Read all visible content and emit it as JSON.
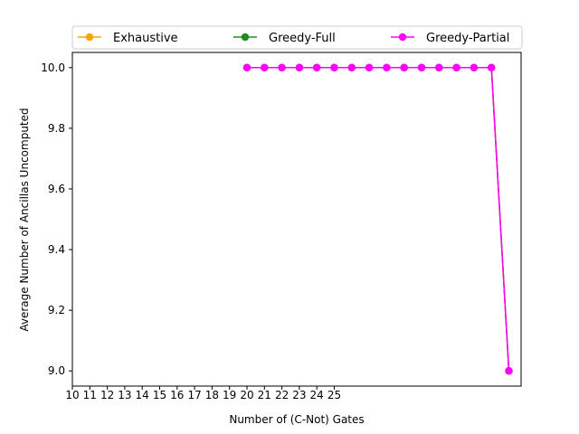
{
  "chart_data": {
    "type": "line",
    "xlabel": "Number of (C-Not) Gates",
    "ylabel": "Average Number of Ancillas Uncomputed",
    "x_tick_labels": [
      "10",
      "11",
      "12",
      "13",
      "14",
      "15",
      "16",
      "17",
      "18",
      "19",
      "20",
      "21",
      "22",
      "23",
      "24",
      "25"
    ],
    "y_ticks": [
      9.0,
      9.2,
      9.4,
      9.6,
      9.8,
      10.0
    ],
    "y_tick_labels": [
      "9.0",
      "9.2",
      "9.4",
      "9.6",
      "9.8",
      "10.0"
    ],
    "ylim": [
      8.95,
      10.05
    ],
    "x_positions": [
      20,
      21,
      22,
      23,
      24,
      25,
      26,
      27,
      28,
      29,
      30,
      31,
      32,
      33,
      34,
      35
    ],
    "legend_placement": "top (above axes)",
    "series": [
      {
        "name": "Exhaustive",
        "color": "#ffa500",
        "values": [
          10,
          10,
          10,
          10,
          10,
          10,
          10,
          10,
          10,
          10,
          10,
          10,
          10,
          10,
          10,
          9
        ]
      },
      {
        "name": "Greedy-Full",
        "color": "#228b22",
        "values": [
          10,
          10,
          10,
          10,
          10,
          10,
          10,
          10,
          10,
          10,
          10,
          10,
          10,
          10,
          10,
          9
        ]
      },
      {
        "name": "Greedy-Partial",
        "color": "#ff00ff",
        "values": [
          10,
          10,
          10,
          10,
          10,
          10,
          10,
          10,
          10,
          10,
          10,
          10,
          10,
          10,
          10,
          9
        ]
      }
    ]
  }
}
